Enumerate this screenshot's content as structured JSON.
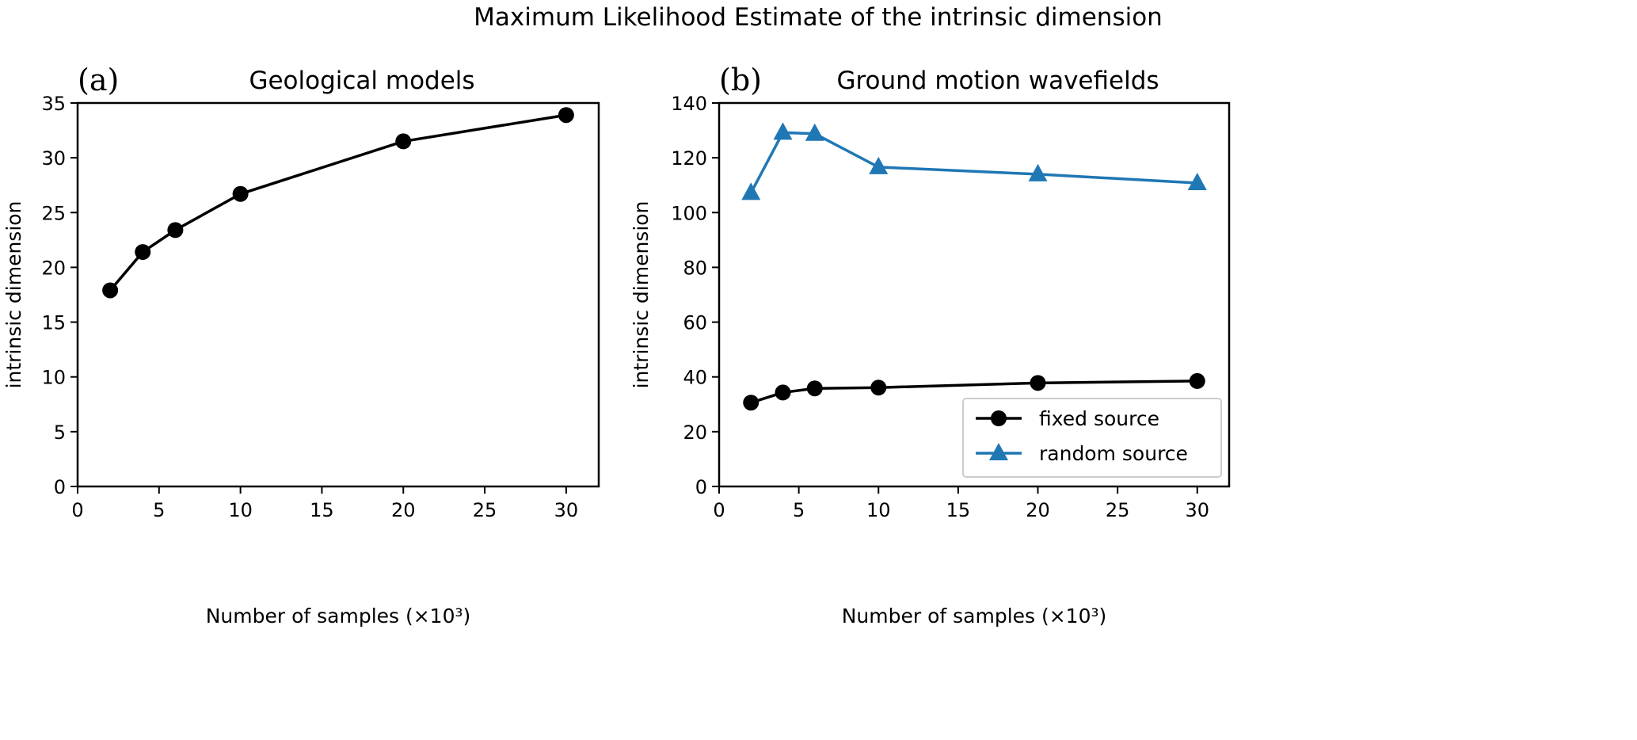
{
  "suptitle": "Maximum Likelihood Estimate of the intrinsic dimension",
  "chart_data": [
    {
      "type": "line",
      "panel_label": "(a)",
      "title": "Geological models",
      "xlabel": "Number of samples (×10³)",
      "ylabel": "intrinsic dimension",
      "xlim": [
        0,
        32
      ],
      "ylim": [
        0,
        35
      ],
      "xticks": [
        0,
        5,
        10,
        15,
        20,
        25,
        30
      ],
      "yticks": [
        0,
        5,
        10,
        15,
        20,
        25,
        30,
        35
      ],
      "grid": false,
      "series": [
        {
          "name": "",
          "color": "#000000",
          "marker": "circle",
          "x": [
            2,
            4,
            6,
            10,
            20,
            30
          ],
          "y": [
            17.9,
            21.4,
            23.4,
            26.7,
            31.5,
            33.9
          ]
        }
      ]
    },
    {
      "type": "line",
      "panel_label": "(b)",
      "title": "Ground motion wavefields",
      "xlabel": "Number of samples (×10³)",
      "ylabel": "intrinsic dimension",
      "xlim": [
        0,
        32
      ],
      "ylim": [
        0,
        140
      ],
      "xticks": [
        0,
        5,
        10,
        15,
        20,
        25,
        30
      ],
      "yticks": [
        0,
        20,
        40,
        60,
        80,
        100,
        120,
        140
      ],
      "grid": false,
      "legend": "lower-right",
      "series": [
        {
          "name": "fixed source",
          "color": "#000000",
          "marker": "circle",
          "x": [
            2,
            4,
            6,
            10,
            20,
            30
          ],
          "y": [
            30.6,
            34.3,
            35.8,
            36.1,
            37.8,
            38.5
          ]
        },
        {
          "name": "random source",
          "color": "#1f77b4",
          "marker": "triangle",
          "x": [
            2,
            4,
            6,
            10,
            20,
            30
          ],
          "y": [
            107.2,
            129.2,
            128.8,
            116.6,
            114.0,
            110.8
          ]
        }
      ]
    }
  ]
}
